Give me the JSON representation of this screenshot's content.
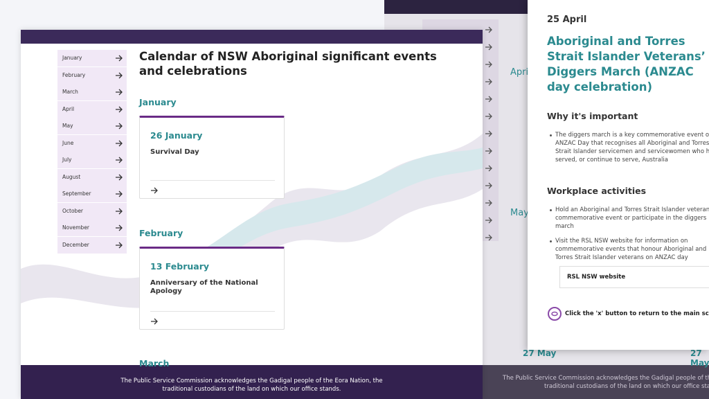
{
  "back_window": {
    "headings": [
      "Apri",
      "May"
    ],
    "dates": [
      "27 May",
      "27 May"
    ],
    "footer": [
      "The Public Service Commission acknowledges the Gadigal people of the Eora Nation, the",
      "traditional custodians of the land on which our office stands."
    ]
  },
  "main_window": {
    "sidebar": [
      "January",
      "February",
      "March",
      "April",
      "May",
      "June",
      "July",
      "August",
      "September",
      "October",
      "November",
      "December"
    ],
    "title": "Calendar of NSW Aboriginal significant events and celebrations",
    "sections": [
      {
        "month": "January",
        "card": {
          "date": "26 January",
          "event": "Survival Day"
        }
      },
      {
        "month": "February",
        "card": {
          "date": "13 February",
          "event": "Anniversary of the National Apology"
        }
      },
      {
        "month": "March"
      }
    ],
    "footer": [
      "The Public Service Commission acknowledges the Gadigal people of the Eora Nation, the",
      "traditional custodians of the land on which our office stands."
    ]
  },
  "modal": {
    "date": "25 April",
    "title": "Aboriginal and Torres Strait Islander Veterans’ Diggers March (ANZAC day celebration)",
    "sections": [
      {
        "heading": "Why it's important",
        "bullets": [
          "The diggers march is a key commemorative event on ANZAC Day that recognises all Aboriginal and Torres Strait Islander servicemen and servicewomen who have served, or continue to serve, Australia"
        ]
      },
      {
        "heading": "Workplace activities",
        "bullets": [
          "Hold an Aboriginal and Torres Strait Islander veterans commemorative event or participate in the diggers march",
          "Visit the RSL NSW website for information on commemorative events that honour Aboriginal and Torres Strait Islander veterans on ANZAC day"
        ]
      }
    ],
    "link": "RSL NSW website",
    "hint": "Click the 'x' button to return to the main screen."
  }
}
